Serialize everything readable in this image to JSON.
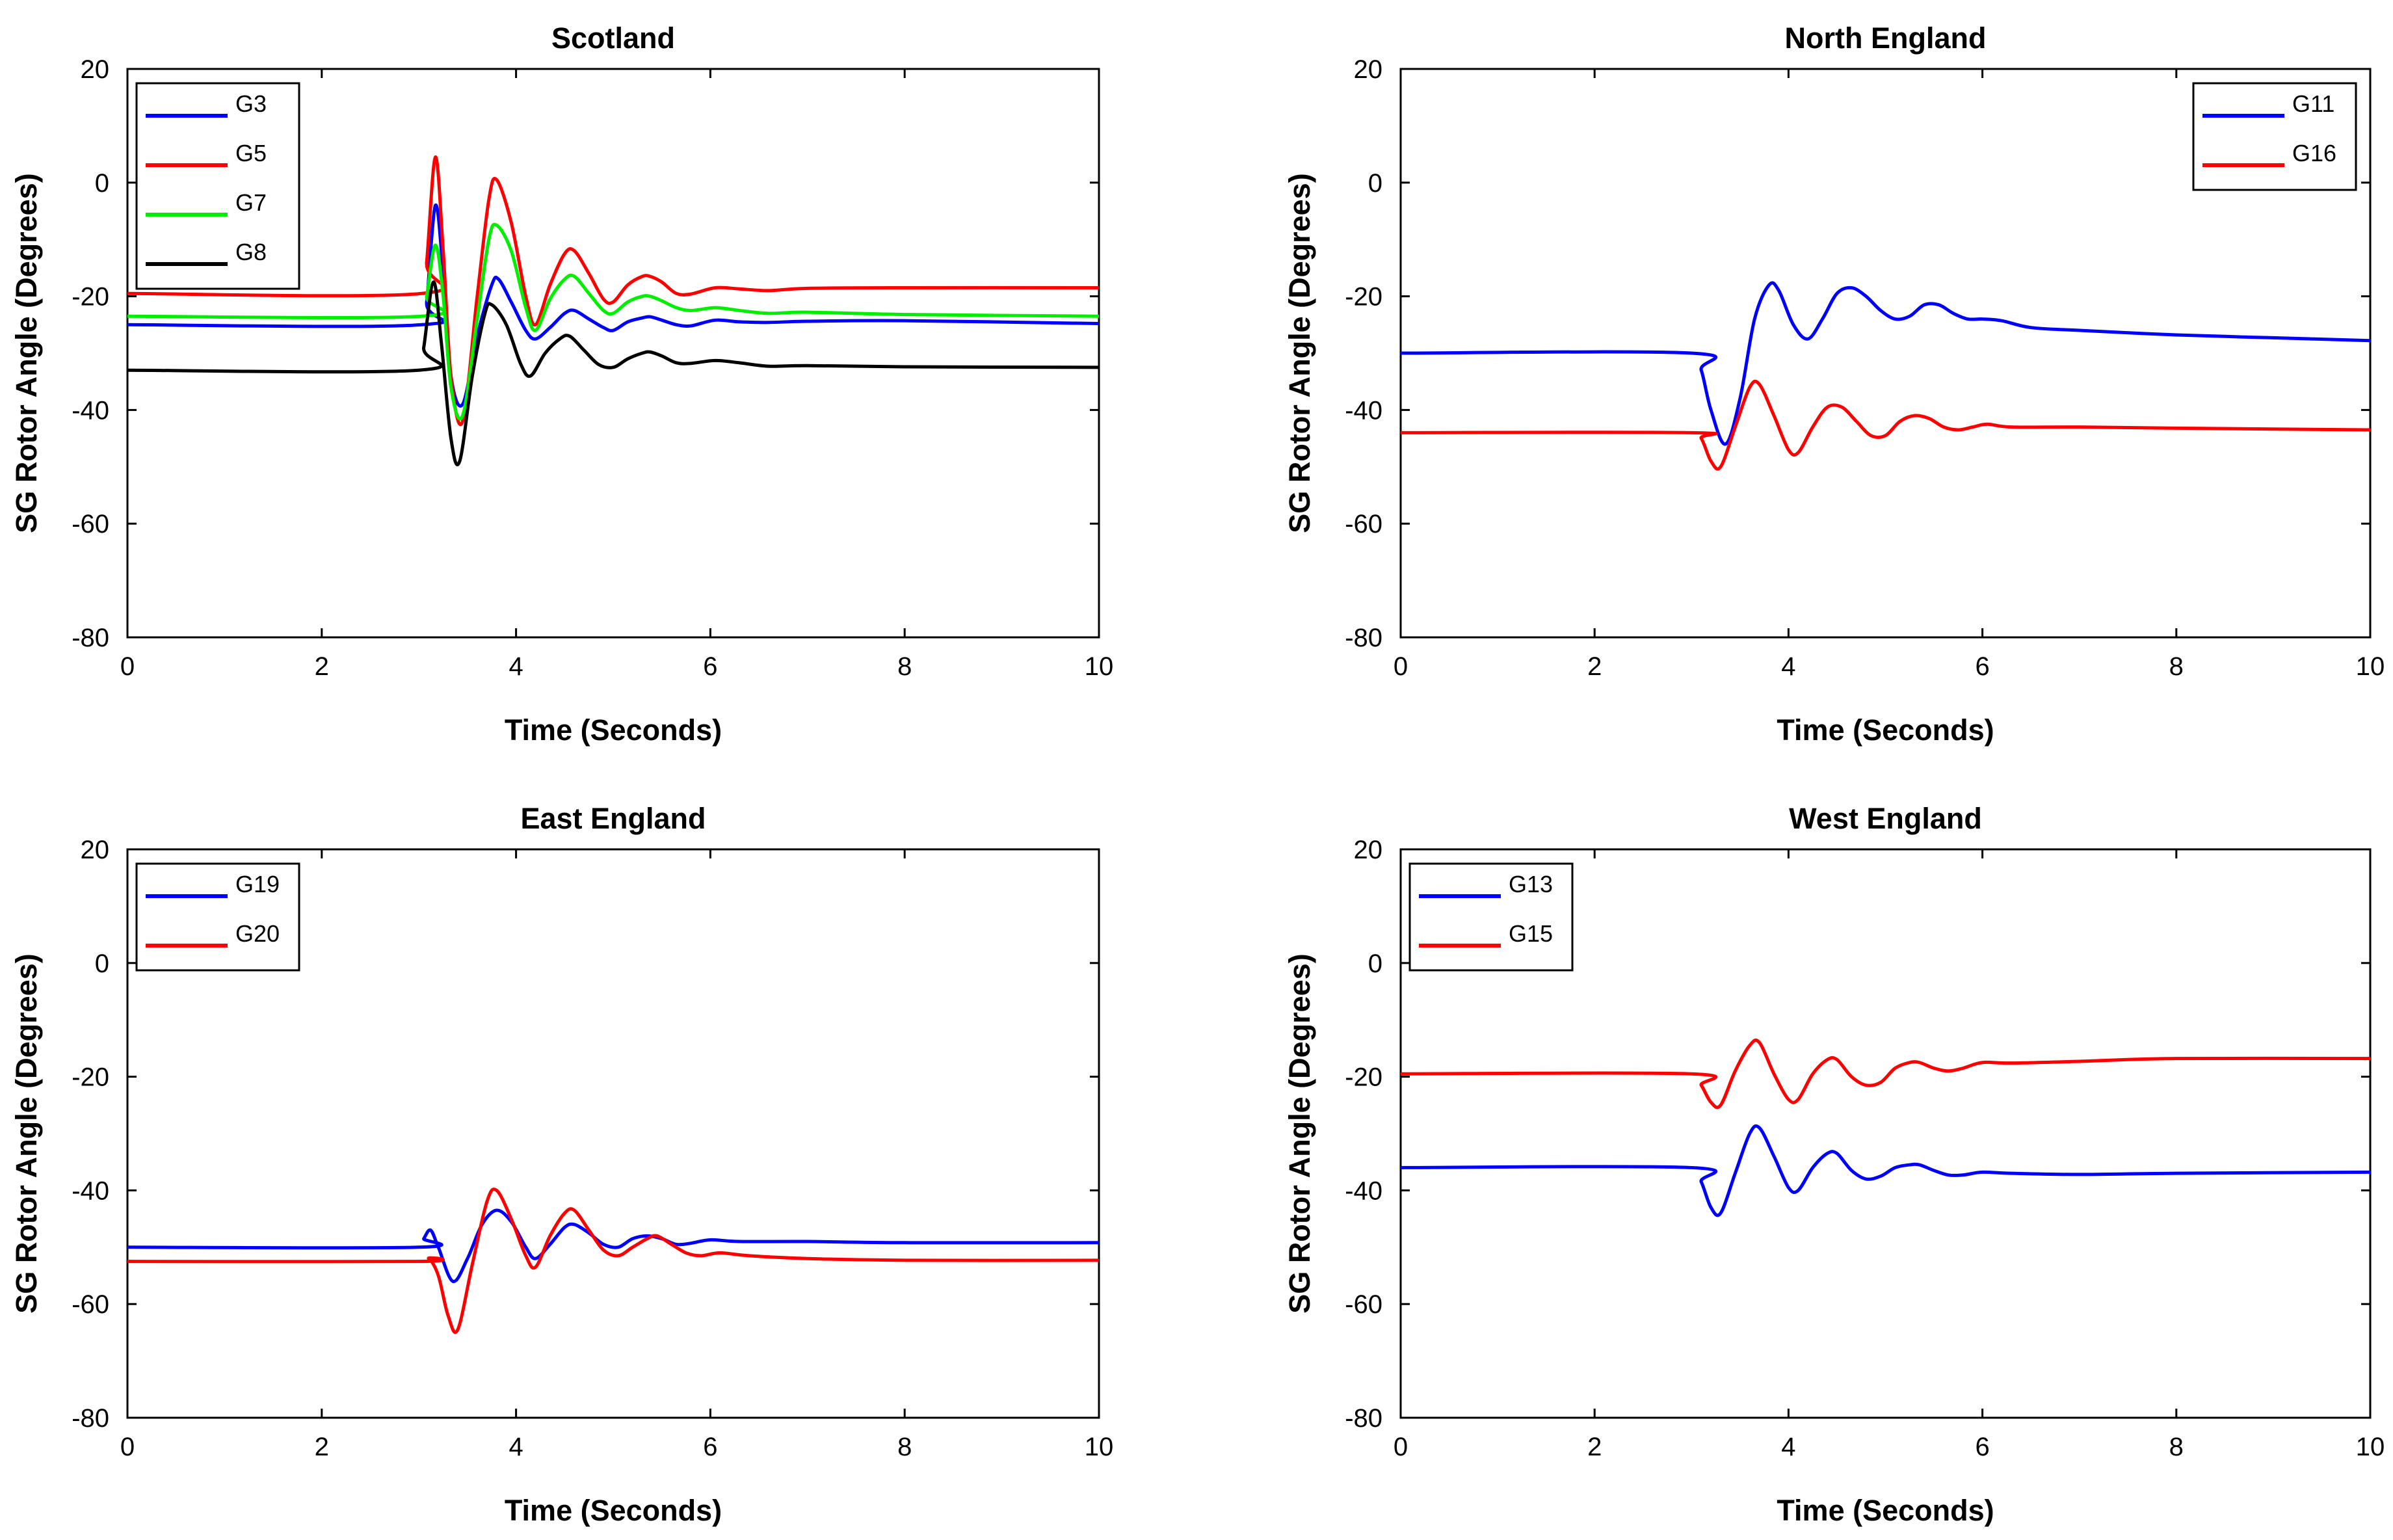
{
  "chart_data": [
    {
      "type": "line",
      "title": "Scotland",
      "xlabel": "Time (Seconds)",
      "ylabel": "SG Rotor Angle (Degrees)",
      "xlim": [
        0,
        10
      ],
      "ylim": [
        -80,
        20
      ],
      "xticks": [
        0,
        2,
        4,
        6,
        8,
        10
      ],
      "yticks": [
        20,
        0,
        -20,
        -40,
        -60,
        -80
      ],
      "grid": false,
      "legend_position": "top-left",
      "series": [
        {
          "name": "G3",
          "color": "#0000ff",
          "x": [
            0,
            3.03,
            3.08,
            3.17,
            3.25,
            3.33,
            3.45,
            3.6,
            3.75,
            3.82,
            3.95,
            4.1,
            4.2,
            4.35,
            4.5,
            4.6,
            4.75,
            4.9,
            5.0,
            5.15,
            5.3,
            5.38,
            5.5,
            5.65,
            5.8,
            6.05,
            6.3,
            6.6,
            7.0,
            8.0,
            10.0
          ],
          "y": [
            -25,
            -25,
            -21,
            -4,
            -16,
            -34,
            -39,
            -27,
            -18,
            -17,
            -21,
            -26,
            -27.5,
            -25.5,
            -23,
            -22.5,
            -24,
            -25.5,
            -26,
            -24.5,
            -23.8,
            -23.6,
            -24.2,
            -25,
            -25.2,
            -24.2,
            -24.5,
            -24.6,
            -24.4,
            -24.3,
            -24.8
          ]
        },
        {
          "name": "G5",
          "color": "#ff0000",
          "x": [
            0,
            3.03,
            3.08,
            3.17,
            3.25,
            3.33,
            3.45,
            3.6,
            3.72,
            3.8,
            3.95,
            4.1,
            4.2,
            4.35,
            4.5,
            4.6,
            4.75,
            4.9,
            5.0,
            5.15,
            5.3,
            5.38,
            5.5,
            5.65,
            5.8,
            6.05,
            6.3,
            6.6,
            7.0,
            8.0,
            10.0
          ],
          "y": [
            -19.5,
            -19.5,
            -14,
            4.5,
            -12,
            -34,
            -42,
            -20,
            -3,
            0.5,
            -7,
            -20,
            -25,
            -18,
            -12.5,
            -12,
            -16,
            -20.5,
            -21,
            -18,
            -16.5,
            -16.5,
            -17.5,
            -19.5,
            -19.6,
            -18.5,
            -18.7,
            -19,
            -18.6,
            -18.5,
            -18.5
          ]
        },
        {
          "name": "G7",
          "color": "#00ee00",
          "x": [
            0,
            3.03,
            3.08,
            3.17,
            3.25,
            3.33,
            3.45,
            3.6,
            3.72,
            3.8,
            3.95,
            4.1,
            4.2,
            4.35,
            4.5,
            4.6,
            4.75,
            4.9,
            5.0,
            5.15,
            5.3,
            5.38,
            5.5,
            5.65,
            5.8,
            6.05,
            6.3,
            6.6,
            7.0,
            8.0,
            10.0
          ],
          "y": [
            -23.5,
            -23.5,
            -20,
            -11,
            -20,
            -36,
            -41,
            -24,
            -10,
            -7.5,
            -12,
            -22,
            -26,
            -20.5,
            -17,
            -16.5,
            -19.5,
            -22.5,
            -23,
            -21,
            -20,
            -20,
            -20.8,
            -22,
            -22.5,
            -22,
            -22.5,
            -23,
            -22.8,
            -23.2,
            -23.5
          ]
        },
        {
          "name": "G8",
          "color": "#000000",
          "x": [
            0,
            3.0,
            3.05,
            3.15,
            3.23,
            3.33,
            3.42,
            3.55,
            3.68,
            3.75,
            3.9,
            4.05,
            4.15,
            4.3,
            4.45,
            4.55,
            4.7,
            4.85,
            5.0,
            5.15,
            5.3,
            5.38,
            5.5,
            5.65,
            5.8,
            6.05,
            6.3,
            6.6,
            7.0,
            8.0,
            10.0
          ],
          "y": [
            -33,
            -33,
            -29,
            -17.5,
            -28,
            -45,
            -49,
            -34,
            -23,
            -21.5,
            -25,
            -32,
            -34,
            -30,
            -27.5,
            -27,
            -29.5,
            -32,
            -32.5,
            -31,
            -30,
            -29.8,
            -30.5,
            -31.7,
            -31.8,
            -31.3,
            -31.7,
            -32.3,
            -32.2,
            -32.4,
            -32.5
          ]
        }
      ]
    },
    {
      "type": "line",
      "title": "North England",
      "xlabel": "Time (Seconds)",
      "ylabel": "SG Rotor Angle (Degrees)",
      "xlim": [
        0,
        10
      ],
      "ylim": [
        -80,
        20
      ],
      "xticks": [
        0,
        2,
        4,
        6,
        8,
        10
      ],
      "yticks": [
        20,
        0,
        -20,
        -40,
        -60,
        -80
      ],
      "grid": false,
      "legend_position": "top-right",
      "series": [
        {
          "name": "G11",
          "color": "#0000ff",
          "x": [
            0,
            3.0,
            3.1,
            3.2,
            3.35,
            3.5,
            3.65,
            3.8,
            3.9,
            4.05,
            4.2,
            4.35,
            4.5,
            4.65,
            4.8,
            4.95,
            5.1,
            5.25,
            5.4,
            5.55,
            5.7,
            5.85,
            6.0,
            6.2,
            6.5,
            7.0,
            8.0,
            9.0,
            10.0
          ],
          "y": [
            -30,
            -30,
            -33,
            -40,
            -46,
            -38,
            -24,
            -18,
            -19,
            -25,
            -27.5,
            -24,
            -19.5,
            -18.5,
            -20,
            -22.5,
            -24,
            -23.5,
            -21.5,
            -21.5,
            -23,
            -24,
            -24,
            -24.3,
            -25.5,
            -26,
            -26.8,
            -27.3,
            -27.8
          ]
        },
        {
          "name": "G16",
          "color": "#ff0000",
          "x": [
            0,
            3.0,
            3.1,
            3.2,
            3.3,
            3.45,
            3.6,
            3.7,
            3.85,
            4.0,
            4.1,
            4.25,
            4.4,
            4.55,
            4.7,
            4.85,
            5.0,
            5.15,
            5.3,
            5.45,
            5.6,
            5.75,
            5.9,
            6.05,
            6.3,
            7.0,
            8.0,
            10.0
          ],
          "y": [
            -44,
            -44,
            -45,
            -49,
            -50,
            -43,
            -36,
            -35.5,
            -41,
            -47,
            -47.5,
            -43,
            -39.5,
            -39.5,
            -42,
            -44.5,
            -44.5,
            -42,
            -41,
            -41.5,
            -43,
            -43.5,
            -43,
            -42.5,
            -43,
            -43,
            -43.2,
            -43.5
          ]
        }
      ]
    },
    {
      "type": "line",
      "title": "East England",
      "xlabel": "Time (Seconds)",
      "ylabel": "SG Rotor Angle (Degrees)",
      "xlim": [
        0,
        10
      ],
      "ylim": [
        -80,
        20
      ],
      "xticks": [
        0,
        2,
        4,
        6,
        8,
        10
      ],
      "yticks": [
        20,
        0,
        -20,
        -40,
        -60,
        -80
      ],
      "grid": false,
      "legend_position": "top-left",
      "series": [
        {
          "name": "G19",
          "color": "#0000ff",
          "x": [
            0,
            3.0,
            3.05,
            3.12,
            3.2,
            3.35,
            3.5,
            3.65,
            3.8,
            3.95,
            4.1,
            4.2,
            4.35,
            4.5,
            4.6,
            4.75,
            4.9,
            5.05,
            5.2,
            5.35,
            5.5,
            5.65,
            5.8,
            6.0,
            6.3,
            7.0,
            8.0,
            10.0
          ],
          "y": [
            -50,
            -50,
            -48.5,
            -47,
            -50,
            -56,
            -52,
            -46,
            -43.5,
            -45.5,
            -50,
            -52,
            -49.5,
            -46.5,
            -46,
            -47.5,
            -49.5,
            -50,
            -48.5,
            -48,
            -48.5,
            -49.5,
            -49.3,
            -48.7,
            -49,
            -49,
            -49.2,
            -49.2
          ]
        },
        {
          "name": "G20",
          "color": "#ff0000",
          "x": [
            0,
            3.0,
            3.1,
            3.2,
            3.3,
            3.4,
            3.55,
            3.7,
            3.8,
            3.95,
            4.1,
            4.2,
            4.35,
            4.5,
            4.6,
            4.75,
            4.9,
            5.05,
            5.2,
            5.35,
            5.45,
            5.6,
            5.75,
            5.9,
            6.1,
            6.4,
            7.0,
            8.0,
            10.0
          ],
          "y": [
            -52.5,
            -52.5,
            -52,
            -55,
            -62,
            -64.5,
            -53,
            -42,
            -40,
            -45,
            -51.5,
            -53.5,
            -48,
            -44,
            -43.5,
            -47,
            -50.5,
            -51.5,
            -50,
            -48.5,
            -48,
            -49.5,
            -51,
            -51.5,
            -51,
            -51.5,
            -52,
            -52.3,
            -52.3
          ]
        }
      ]
    },
    {
      "type": "line",
      "title": "West England",
      "xlabel": "Time (Seconds)",
      "ylabel": "SG Rotor Angle (Degrees)",
      "xlim": [
        0,
        10
      ],
      "ylim": [
        -80,
        20
      ],
      "xticks": [
        0,
        2,
        4,
        6,
        8,
        10
      ],
      "yticks": [
        20,
        0,
        -20,
        -40,
        -60,
        -80
      ],
      "grid": false,
      "legend_position": "top-left",
      "series": [
        {
          "name": "G13",
          "color": "#0000ff",
          "x": [
            0,
            3.0,
            3.1,
            3.2,
            3.3,
            3.45,
            3.6,
            3.7,
            3.85,
            4.0,
            4.1,
            4.25,
            4.4,
            4.5,
            4.65,
            4.8,
            4.95,
            5.1,
            5.25,
            5.35,
            5.5,
            5.65,
            5.8,
            6.0,
            6.3,
            7.0,
            8.0,
            10.0
          ],
          "y": [
            -36,
            -36,
            -38.5,
            -43,
            -44,
            -37,
            -30,
            -29,
            -34,
            -39.5,
            -40,
            -36,
            -33.5,
            -33.5,
            -36.5,
            -38,
            -37.5,
            -36,
            -35.5,
            -35.5,
            -36.5,
            -37.3,
            -37.3,
            -36.8,
            -37,
            -37.2,
            -37,
            -36.8
          ]
        },
        {
          "name": "G15",
          "color": "#ff0000",
          "x": [
            0,
            3.0,
            3.1,
            3.2,
            3.3,
            3.45,
            3.6,
            3.7,
            3.85,
            4.0,
            4.1,
            4.25,
            4.4,
            4.5,
            4.65,
            4.8,
            4.95,
            5.1,
            5.25,
            5.35,
            5.5,
            5.65,
            5.8,
            6.0,
            6.3,
            7.0,
            8.0,
            10.0
          ],
          "y": [
            -19.5,
            -19.5,
            -21.5,
            -24.5,
            -25,
            -19,
            -14.5,
            -14,
            -19.5,
            -24,
            -24,
            -19.5,
            -17,
            -17,
            -20,
            -21.5,
            -21,
            -18.5,
            -17.5,
            -17.5,
            -18.5,
            -19,
            -18.5,
            -17.5,
            -17.6,
            -17.3,
            -16.8,
            -16.8
          ]
        }
      ]
    }
  ]
}
